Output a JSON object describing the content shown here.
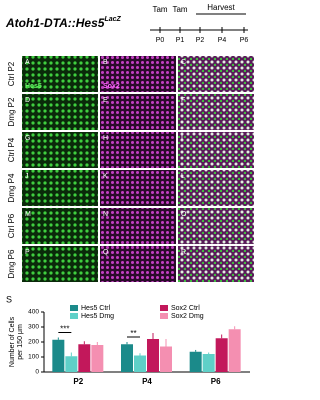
{
  "title": {
    "main": "Atoh1-DTA::Hes5",
    "sup": "LacZ"
  },
  "timeline": {
    "labels": [
      "Tam",
      "Tam",
      "Harvest"
    ],
    "days": [
      "P0",
      "P1",
      "P2",
      "P4",
      "P6"
    ]
  },
  "panels": {
    "rows": [
      "Ctrl P2",
      "Dmg P2",
      "Ctrl P4",
      "Dmg P4",
      "Ctrl P6",
      "Dmg P6"
    ],
    "letters": [
      "A",
      "B",
      "C",
      "D",
      "E",
      "F",
      "G",
      "H",
      "I",
      "J",
      "K",
      "L",
      "M",
      "N",
      "O",
      "P",
      "Q",
      "R"
    ],
    "stains": [
      "Hes5",
      "Sox2"
    ]
  },
  "chart_data": {
    "type": "bar",
    "panel_label": "S",
    "ylabel": [
      "Number of Cells",
      "per 150 μm"
    ],
    "categories": [
      "P2",
      "P4",
      "P6"
    ],
    "series": [
      {
        "name": "Hes5 Ctrl",
        "color": "#1b8a8a",
        "values": [
          215,
          185,
          135
        ],
        "errors": [
          15,
          15,
          12
        ]
      },
      {
        "name": "Hes5 Dmg",
        "color": "#5fd0c8",
        "values": [
          105,
          110,
          120
        ],
        "errors": [
          25,
          15,
          10
        ]
      },
      {
        "name": "Sox2 Ctrl",
        "color": "#c2185b",
        "values": [
          185,
          220,
          225
        ],
        "errors": [
          20,
          40,
          25
        ]
      },
      {
        "name": "Sox2 Dmg",
        "color": "#f48fb1",
        "values": [
          180,
          170,
          285
        ],
        "errors": [
          20,
          50,
          20
        ]
      }
    ],
    "annotations": [
      "***",
      "**"
    ],
    "ylim": [
      0,
      400
    ],
    "yticks": [
      0,
      100,
      200,
      300,
      400
    ]
  }
}
